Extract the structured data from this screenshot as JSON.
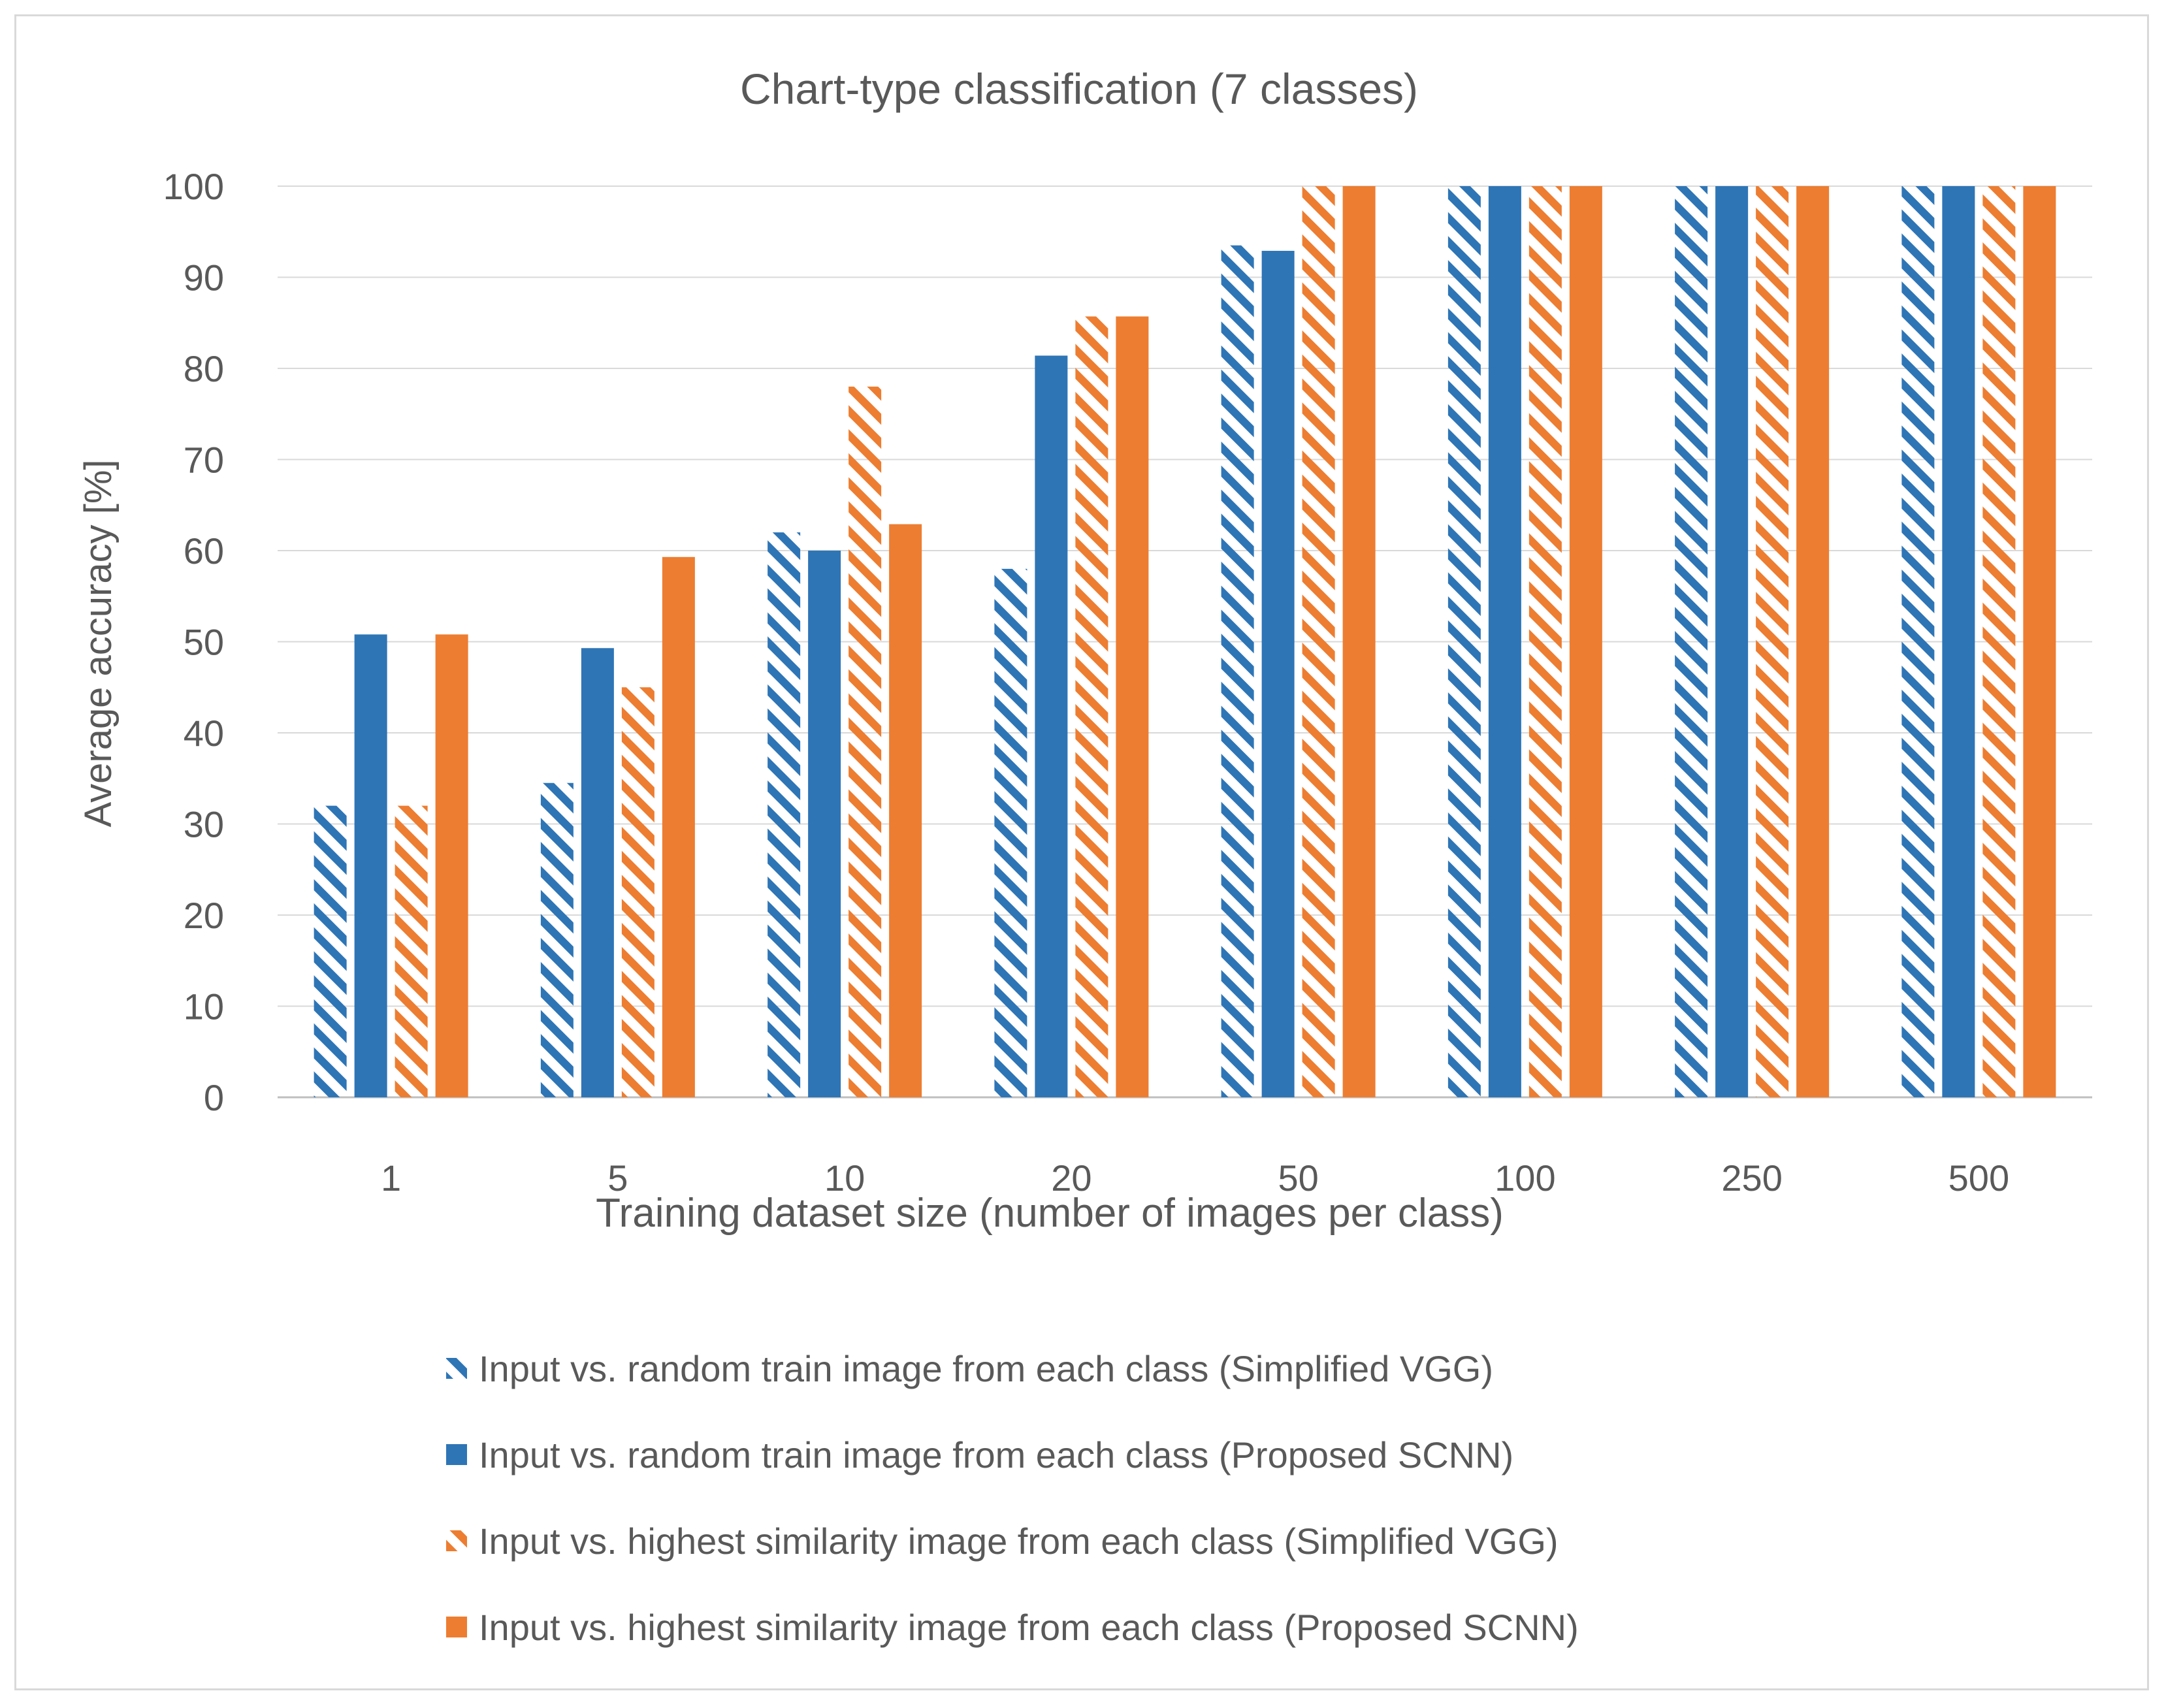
{
  "chart_data": {
    "type": "bar",
    "title": "Chart-type classification (7 classes)",
    "xlabel": "Training dataset size (number of images per class)",
    "ylabel": "Average accuracy [%]",
    "ylim": [
      0,
      100
    ],
    "yticks": [
      0,
      10,
      20,
      30,
      40,
      50,
      60,
      70,
      80,
      90,
      100
    ],
    "grid": true,
    "legend_position": "bottom",
    "categories": [
      "1",
      "5",
      "10",
      "20",
      "50",
      "100",
      "250",
      "500"
    ],
    "series": [
      {
        "name": "Input vs. random train image from each class (Simplified VGG)",
        "color": "#2e75b6",
        "pattern": "hatched",
        "values": [
          32,
          34.5,
          62,
          58,
          93.5,
          100,
          100,
          100
        ]
      },
      {
        "name": "Input vs. random train image from each class (Proposed SCNN)",
        "color": "#2e75b6",
        "pattern": "solid",
        "values": [
          50.8,
          49.3,
          60,
          81.4,
          92.9,
          100,
          100,
          100
        ]
      },
      {
        "name": "Input vs. highest similarity image from each class (Simplified VGG)",
        "color": "#ed7d31",
        "pattern": "hatched",
        "values": [
          32,
          45,
          78,
          85.7,
          100,
          100,
          100,
          100
        ]
      },
      {
        "name": "Input vs. highest similarity image from each class (Proposed SCNN)",
        "color": "#ed7d31",
        "pattern": "solid",
        "values": [
          50.8,
          59.3,
          62.9,
          85.7,
          100,
          100,
          100,
          100
        ]
      }
    ]
  }
}
